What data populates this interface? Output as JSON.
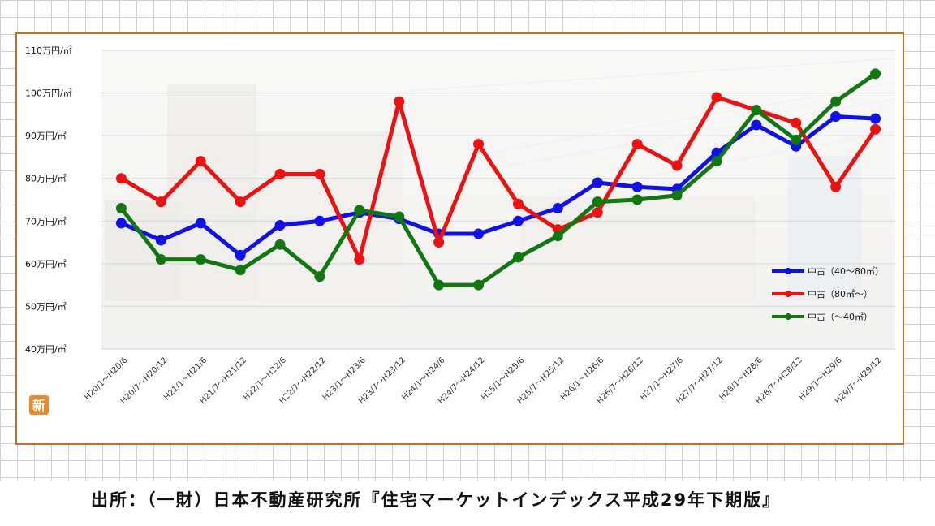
{
  "source": "出所：（一財）日本不動産研究所『住宅マーケットインデックス平成29年下期版』",
  "badge": "新",
  "chart_data": {
    "type": "line",
    "title": "",
    "xlabel": "",
    "ylabel": "",
    "ylim": [
      40,
      110
    ],
    "y_ticks": [
      {
        "value": 110,
        "label": "110万円/㎡"
      },
      {
        "value": 100,
        "label": "100万円/㎡"
      },
      {
        "value": 90,
        "label": "90万円/㎡"
      },
      {
        "value": 80,
        "label": "80万円/㎡"
      },
      {
        "value": 70,
        "label": "70万円/㎡"
      },
      {
        "value": 60,
        "label": "60万円/㎡"
      },
      {
        "value": 50,
        "label": "50万円/㎡"
      },
      {
        "value": 40,
        "label": "40万円/㎡"
      }
    ],
    "grid": true,
    "legend_position": "right",
    "categories": [
      "H20/1～H20/6",
      "H20/7～H20/12",
      "H21/1～H21/6",
      "H21/7～H21/12",
      "H22/1～H22/6",
      "H22/7～H22/12",
      "H23/1～H23/6",
      "H23/7～H23/12",
      "H24/1～H24/6",
      "H24/7～H24/12",
      "H25/1～H25/6",
      "H25/7～H25/12",
      "H26/1～H26/6",
      "H26/7～H26/12",
      "H27/1～H27/6",
      "H27/7～H27/12",
      "H28/1～H28/6",
      "H28/7～H28/12",
      "H29/1～H29/6",
      "H29/7～H29/12"
    ],
    "series": [
      {
        "name": "中古（40～80㎡）",
        "color": "#1010ee",
        "values": [
          69.5,
          65.5,
          69.5,
          62,
          69,
          70,
          72,
          70.5,
          67,
          67,
          70,
          73,
          79,
          78,
          77.5,
          86,
          92.5,
          87.5,
          94.5,
          94
        ]
      },
      {
        "name": "中古（80㎡～）",
        "color": "#ee1111",
        "values": [
          80,
          74.5,
          84,
          74.5,
          81,
          81,
          61,
          98,
          65,
          88,
          74,
          68,
          72,
          88,
          83,
          99,
          96,
          93,
          78,
          91.5
        ]
      },
      {
        "name": "中古（～40㎡）",
        "color": "#117711",
        "values": [
          73,
          61,
          61,
          58.5,
          64.5,
          57,
          72.5,
          71,
          55,
          55,
          61.5,
          66.5,
          74.5,
          75,
          76,
          84,
          96,
          89,
          98,
          104.5
        ]
      }
    ]
  }
}
